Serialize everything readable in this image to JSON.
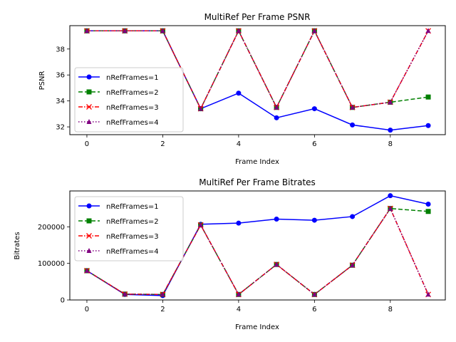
{
  "chart_data": [
    {
      "type": "line",
      "title": "MultiRef Per Frame PSNR",
      "xlabel": "Frame Index",
      "ylabel": "PSNR",
      "xlim": [
        -0.45,
        9.45
      ],
      "ylim": [
        31.4,
        39.8
      ],
      "xticks": [
        0,
        2,
        4,
        6,
        8
      ],
      "xtick_labels": [
        "0",
        "2",
        "4",
        "6",
        "8"
      ],
      "yticks": [
        32,
        34,
        36,
        38
      ],
      "ytick_labels": [
        "32",
        "34",
        "36",
        "38"
      ],
      "grid": false,
      "legend_position": "center-left",
      "x": [
        0,
        1,
        2,
        3,
        4,
        5,
        6,
        7,
        8,
        9
      ],
      "series": [
        {
          "name": "nRefFrames=1",
          "color": "#0000ff",
          "dash": "solid",
          "marker": "circle",
          "values": [
            39.4,
            39.4,
            39.4,
            33.4,
            34.6,
            32.7,
            33.4,
            32.15,
            31.75,
            32.1
          ]
        },
        {
          "name": "nRefFrames=2",
          "color": "#008000",
          "dash": "dashed",
          "marker": "square",
          "values": [
            39.4,
            39.4,
            39.4,
            33.4,
            39.4,
            33.5,
            39.4,
            33.5,
            33.9,
            34.3
          ]
        },
        {
          "name": "nRefFrames=3",
          "color": "#ff0000",
          "dash": "dashdot",
          "marker": "x",
          "values": [
            39.4,
            39.4,
            39.4,
            33.4,
            39.4,
            33.5,
            39.4,
            33.5,
            33.9,
            39.4
          ]
        },
        {
          "name": "nRefFrames=4",
          "color": "#800080",
          "dash": "dotted",
          "marker": "triangle",
          "values": [
            39.4,
            39.4,
            39.4,
            33.4,
            39.4,
            33.5,
            39.4,
            33.5,
            33.9,
            39.4
          ]
        }
      ]
    },
    {
      "type": "line",
      "title": "MultiRef Per Frame Bitrates",
      "xlabel": "Frame Index",
      "ylabel": "Bitrates",
      "xlim": [
        -0.45,
        9.45
      ],
      "ylim": [
        0,
        298000
      ],
      "xticks": [
        0,
        2,
        4,
        6,
        8
      ],
      "xtick_labels": [
        "0",
        "2",
        "4",
        "6",
        "8"
      ],
      "yticks": [
        0,
        100000,
        200000
      ],
      "ytick_labels": [
        "0",
        "100000",
        "200000"
      ],
      "grid": false,
      "legend_position": "upper-left",
      "x": [
        0,
        1,
        2,
        3,
        4,
        5,
        6,
        7,
        8,
        9
      ],
      "series": [
        {
          "name": "nRefFrames=1",
          "color": "#0000ff",
          "dash": "solid",
          "marker": "circle",
          "values": [
            80000,
            15000,
            12000,
            207000,
            210000,
            221000,
            218000,
            228000,
            285000,
            262000
          ]
        },
        {
          "name": "nRefFrames=2",
          "color": "#008000",
          "dash": "dashed",
          "marker": "square",
          "values": [
            80000,
            16000,
            15000,
            205000,
            15000,
            97000,
            15000,
            95000,
            250000,
            242000
          ]
        },
        {
          "name": "nRefFrames=3",
          "color": "#ff0000",
          "dash": "dashdot",
          "marker": "x",
          "values": [
            80000,
            16000,
            15000,
            205000,
            15000,
            97000,
            15000,
            95000,
            250000,
            15000
          ]
        },
        {
          "name": "nRefFrames=4",
          "color": "#800080",
          "dash": "dotted",
          "marker": "triangle",
          "values": [
            80000,
            16000,
            15000,
            205000,
            15000,
            97000,
            15000,
            95000,
            250000,
            15000
          ]
        }
      ]
    }
  ]
}
